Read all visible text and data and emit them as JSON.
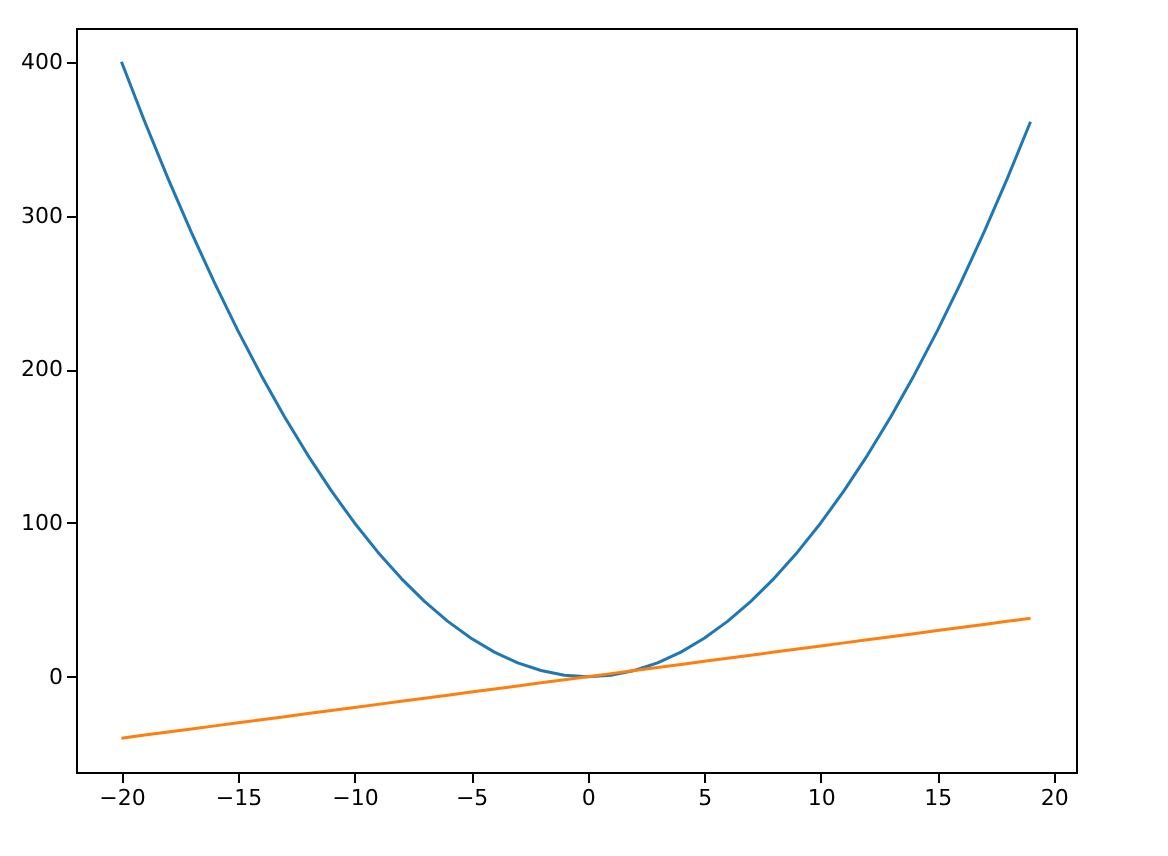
{
  "chart_data": {
    "type": "line",
    "x": [
      -20,
      -19,
      -18,
      -17,
      -16,
      -15,
      -14,
      -13,
      -12,
      -11,
      -10,
      -9,
      -8,
      -7,
      -6,
      -5,
      -4,
      -3,
      -2,
      -1,
      0,
      1,
      2,
      3,
      4,
      5,
      6,
      7,
      8,
      9,
      10,
      11,
      12,
      13,
      14,
      15,
      16,
      17,
      18,
      19
    ],
    "series": [
      {
        "color": "#1f77b4",
        "values": [
          400,
          361,
          324,
          289,
          256,
          225,
          196,
          169,
          144,
          121,
          100,
          81,
          64,
          49,
          36,
          25,
          16,
          9,
          4,
          1,
          0,
          1,
          4,
          9,
          16,
          25,
          36,
          49,
          64,
          81,
          100,
          121,
          144,
          169,
          196,
          225,
          256,
          289,
          324,
          361
        ]
      },
      {
        "color": "#ff7f0e",
        "values": [
          -40,
          -38,
          -36,
          -34,
          -32,
          -30,
          -28,
          -26,
          -24,
          -22,
          -20,
          -18,
          -16,
          -14,
          -12,
          -10,
          -8,
          -6,
          -4,
          -2,
          0,
          2,
          4,
          6,
          8,
          10,
          12,
          14,
          16,
          18,
          20,
          22,
          24,
          26,
          28,
          30,
          32,
          34,
          36,
          38
        ]
      }
    ],
    "xlim": [
      -21.95,
      20.95
    ],
    "ylim": [
      -62,
      422
    ],
    "xticks": [
      -20,
      -15,
      -10,
      -5,
      0,
      5,
      10,
      15,
      20
    ],
    "yticks": [
      0,
      100,
      200,
      300,
      400
    ],
    "grid": false,
    "marker": "none",
    "line_style": "solid"
  }
}
